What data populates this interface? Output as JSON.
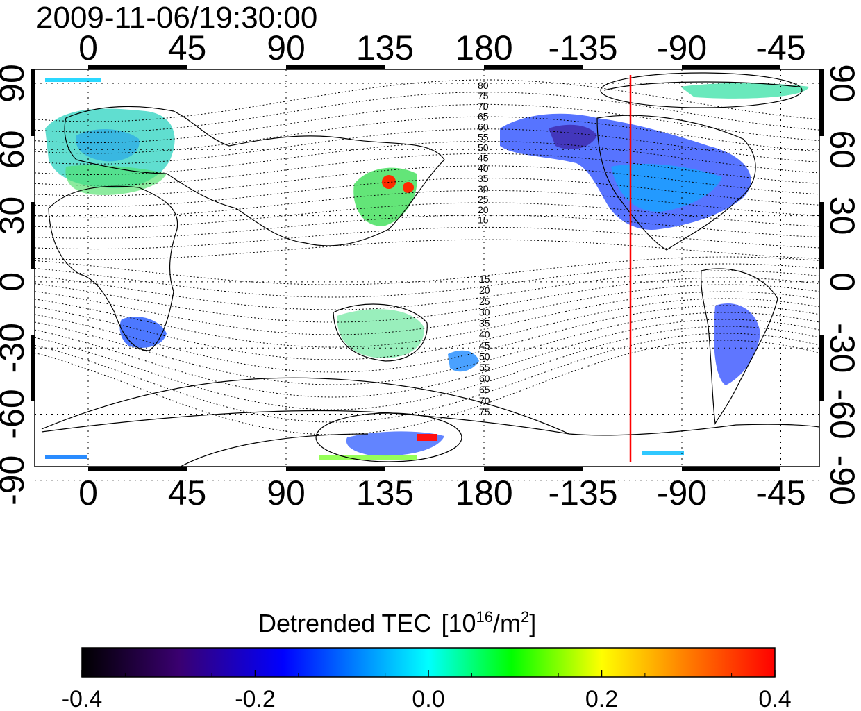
{
  "timestamp": "2009-11-06/19:30:00",
  "map": {
    "lon_ticks": [
      "0",
      "45",
      "90",
      "135",
      "180",
      "-135",
      "-90",
      "-45"
    ],
    "lat_ticks": [
      "90",
      "60",
      "30",
      "0",
      "-30",
      "-60",
      "-90"
    ],
    "contour_labels_north": [
      "80",
      "75",
      "70",
      "65",
      "60",
      "55",
      "50",
      "45",
      "40",
      "35",
      "30",
      "25",
      "20",
      "15"
    ],
    "contour_labels_south": [
      "15",
      "20",
      "25",
      "30",
      "35",
      "40",
      "45",
      "50",
      "55",
      "60",
      "65",
      "70",
      "75"
    ],
    "marker_line_color": "#ff0000",
    "grid": "dotted"
  },
  "colorbar": {
    "title": "Detrended TEC",
    "unit_base": "[10",
    "unit_exp": "16",
    "unit_mid": "/m",
    "unit_exp2": "2",
    "unit_end": "]",
    "ticks": [
      "-0.4",
      "-0.2",
      "0.0",
      "0.2",
      "0.4"
    ],
    "min": -0.4,
    "max": 0.4,
    "colors": [
      "#000000",
      "#3a0070",
      "#0000ff",
      "#00ffff",
      "#00ff00",
      "#ffff00",
      "#ff8000",
      "#ff0000"
    ]
  }
}
